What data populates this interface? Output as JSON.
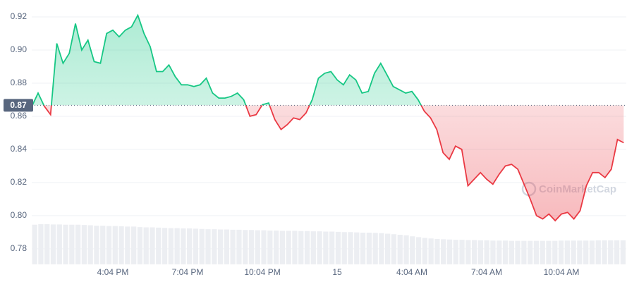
{
  "chart_data": {
    "type": "price-line",
    "categories": [
      null,
      null,
      null,
      null,
      null,
      null,
      null,
      null,
      null,
      null,
      null,
      null,
      null,
      "4:04 PM",
      null,
      null,
      null,
      null,
      null,
      null,
      null,
      null,
      null,
      null,
      null,
      "7:04 PM",
      null,
      null,
      null,
      null,
      null,
      null,
      null,
      null,
      null,
      null,
      null,
      "10:04 PM",
      null,
      null,
      null,
      null,
      null,
      null,
      null,
      null,
      null,
      null,
      null,
      "15",
      null,
      null,
      null,
      null,
      null,
      null,
      null,
      null,
      null,
      null,
      null,
      "4:04 AM",
      null,
      null,
      null,
      null,
      null,
      null,
      null,
      null,
      null,
      null,
      null,
      "7:04 AM",
      null,
      null,
      null,
      null,
      null,
      null,
      null,
      null,
      null,
      null,
      null,
      "10:04 AM",
      null,
      null,
      null,
      null,
      null,
      null,
      null,
      null,
      null,
      null
    ],
    "values": [
      0.866,
      0.874,
      0.866,
      0.861,
      0.904,
      0.892,
      0.898,
      0.916,
      0.9,
      0.906,
      0.893,
      0.892,
      0.91,
      0.912,
      0.908,
      0.912,
      0.914,
      0.921,
      0.91,
      0.902,
      0.887,
      0.887,
      0.891,
      0.884,
      0.879,
      0.879,
      0.878,
      0.879,
      0.883,
      0.874,
      0.871,
      0.871,
      0.872,
      0.874,
      0.87,
      0.86,
      0.861,
      0.867,
      0.868,
      0.858,
      0.852,
      0.855,
      0.859,
      0.858,
      0.862,
      0.87,
      0.883,
      0.886,
      0.887,
      0.882,
      0.879,
      0.885,
      0.882,
      0.874,
      0.875,
      0.886,
      0.892,
      0.885,
      0.878,
      0.876,
      0.874,
      0.875,
      0.87,
      0.863,
      0.859,
      0.852,
      0.838,
      0.834,
      0.842,
      0.84,
      0.818,
      0.822,
      0.826,
      0.822,
      0.819,
      0.825,
      0.83,
      0.831,
      0.828,
      0.819,
      0.81,
      0.8,
      0.798,
      0.801,
      0.797,
      0.801,
      0.802,
      0.798,
      0.803,
      0.818,
      0.826,
      0.826,
      0.823,
      0.828,
      0.846,
      0.844
    ],
    "up_color": "#16c784",
    "down_color": "#ea3943",
    "reference": {
      "value": 0.8666,
      "label": "0.87"
    },
    "volume": {
      "values": [
        15,
        15.2,
        15.2,
        15.1,
        15.1,
        15,
        15,
        15,
        14.9,
        14.8,
        14.6,
        14.6,
        14.5,
        14.5,
        14.4,
        14.3,
        14.3,
        14.1,
        14,
        14,
        13.9,
        13.8,
        13.7,
        13.7,
        13.6,
        13.6,
        13.5,
        13.4,
        13.3,
        13.3,
        13.2,
        13.2,
        13.1,
        13.1,
        13,
        13,
        12.9,
        12.9,
        12.8,
        12.8,
        12.7,
        12.7,
        12.7,
        12.6,
        12.6,
        12.5,
        12.5,
        12.4,
        12.4,
        12.3,
        12.2,
        12.2,
        12.1,
        12,
        12,
        11.9,
        11.8,
        11.6,
        11.4,
        11.2,
        11,
        10.6,
        10.3,
        10,
        9.8,
        9.6,
        9.5,
        9.4,
        9.3,
        9.3,
        9.2,
        9.2,
        9.1,
        9.1,
        9,
        9,
        9,
        8.9,
        8.9,
        8.9,
        8.9,
        8.9,
        8.9,
        8.9,
        8.9,
        9,
        9,
        9,
        9,
        9,
        9,
        9.1,
        9.1,
        9.1,
        9.1,
        9.1
      ],
      "axis": "y2",
      "color": "#eceef2"
    },
    "ylim": [
      0.7706,
      0.9302
    ],
    "yticks": [
      {
        "value": 0.78,
        "label": "0.78"
      },
      {
        "value": 0.8,
        "label": "0.80"
      },
      {
        "value": 0.82,
        "label": "0.82"
      },
      {
        "value": 0.84,
        "label": "0.84"
      },
      {
        "value": 0.86,
        "label": "0.86"
      },
      {
        "value": 0.88,
        "label": "0.88"
      },
      {
        "value": 0.9,
        "label": "0.90"
      },
      {
        "value": 0.92,
        "label": "0.92"
      }
    ],
    "y2lim": [
      0,
      100
    ],
    "grid": true,
    "watermark": "CoinMarketCap"
  }
}
